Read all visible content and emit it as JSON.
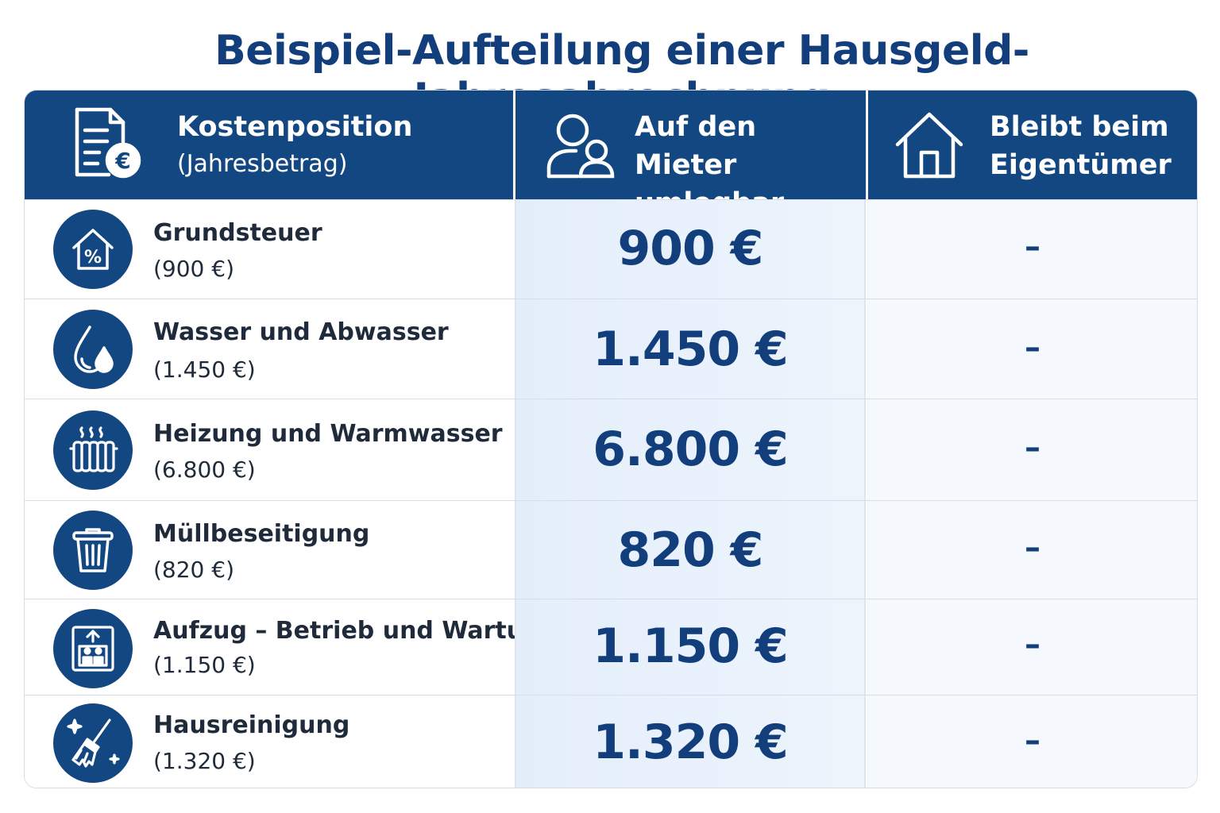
{
  "title": "Beispiel-Aufteilung einer Hausgeld-Jahresabrechnung",
  "header": {
    "col1_line1": "Kostenposition",
    "col1_line2": "(Jahresbetrag)",
    "col2_line1": "Auf den Mieter",
    "col2_line2": "umlegbar",
    "col3_line1": "Bleibt beim",
    "col3_line2": "Eigentümer",
    "col1_icon": "document-euro-icon",
    "col2_icon": "users-icon",
    "col3_icon": "house-icon"
  },
  "rows": [
    {
      "label": "Grundsteuer",
      "amount": "(900 €)",
      "tenant": "900 €",
      "owner": "–",
      "icon": "house-percent-icon"
    },
    {
      "label": "Wasser und Abwasser",
      "amount": "(1.450 €)",
      "tenant": "1.450 €",
      "owner": "–",
      "icon": "water-drops-icon"
    },
    {
      "label": "Heizung und Warmwasser",
      "amount": "(6.800 €)",
      "tenant": "6.800 €",
      "owner": "–",
      "icon": "radiator-icon"
    },
    {
      "label": "Müllbeseitigung",
      "amount": "(820 €)",
      "tenant": "820 €",
      "owner": "–",
      "icon": "trash-icon"
    },
    {
      "label": "Aufzug – Betrieb und Wartung",
      "amount": "(1.150 €)",
      "tenant": "1.150 €",
      "owner": "–",
      "icon": "elevator-icon"
    },
    {
      "label": "Hausreinigung",
      "amount": "(1.320 €)",
      "tenant": "1.320 €",
      "owner": "–",
      "icon": "broom-icon"
    }
  ],
  "colors": {
    "primary": "#124781",
    "tenant_col_bg": "#e4eefb",
    "owner_col_bg": "#f5f8fc"
  }
}
